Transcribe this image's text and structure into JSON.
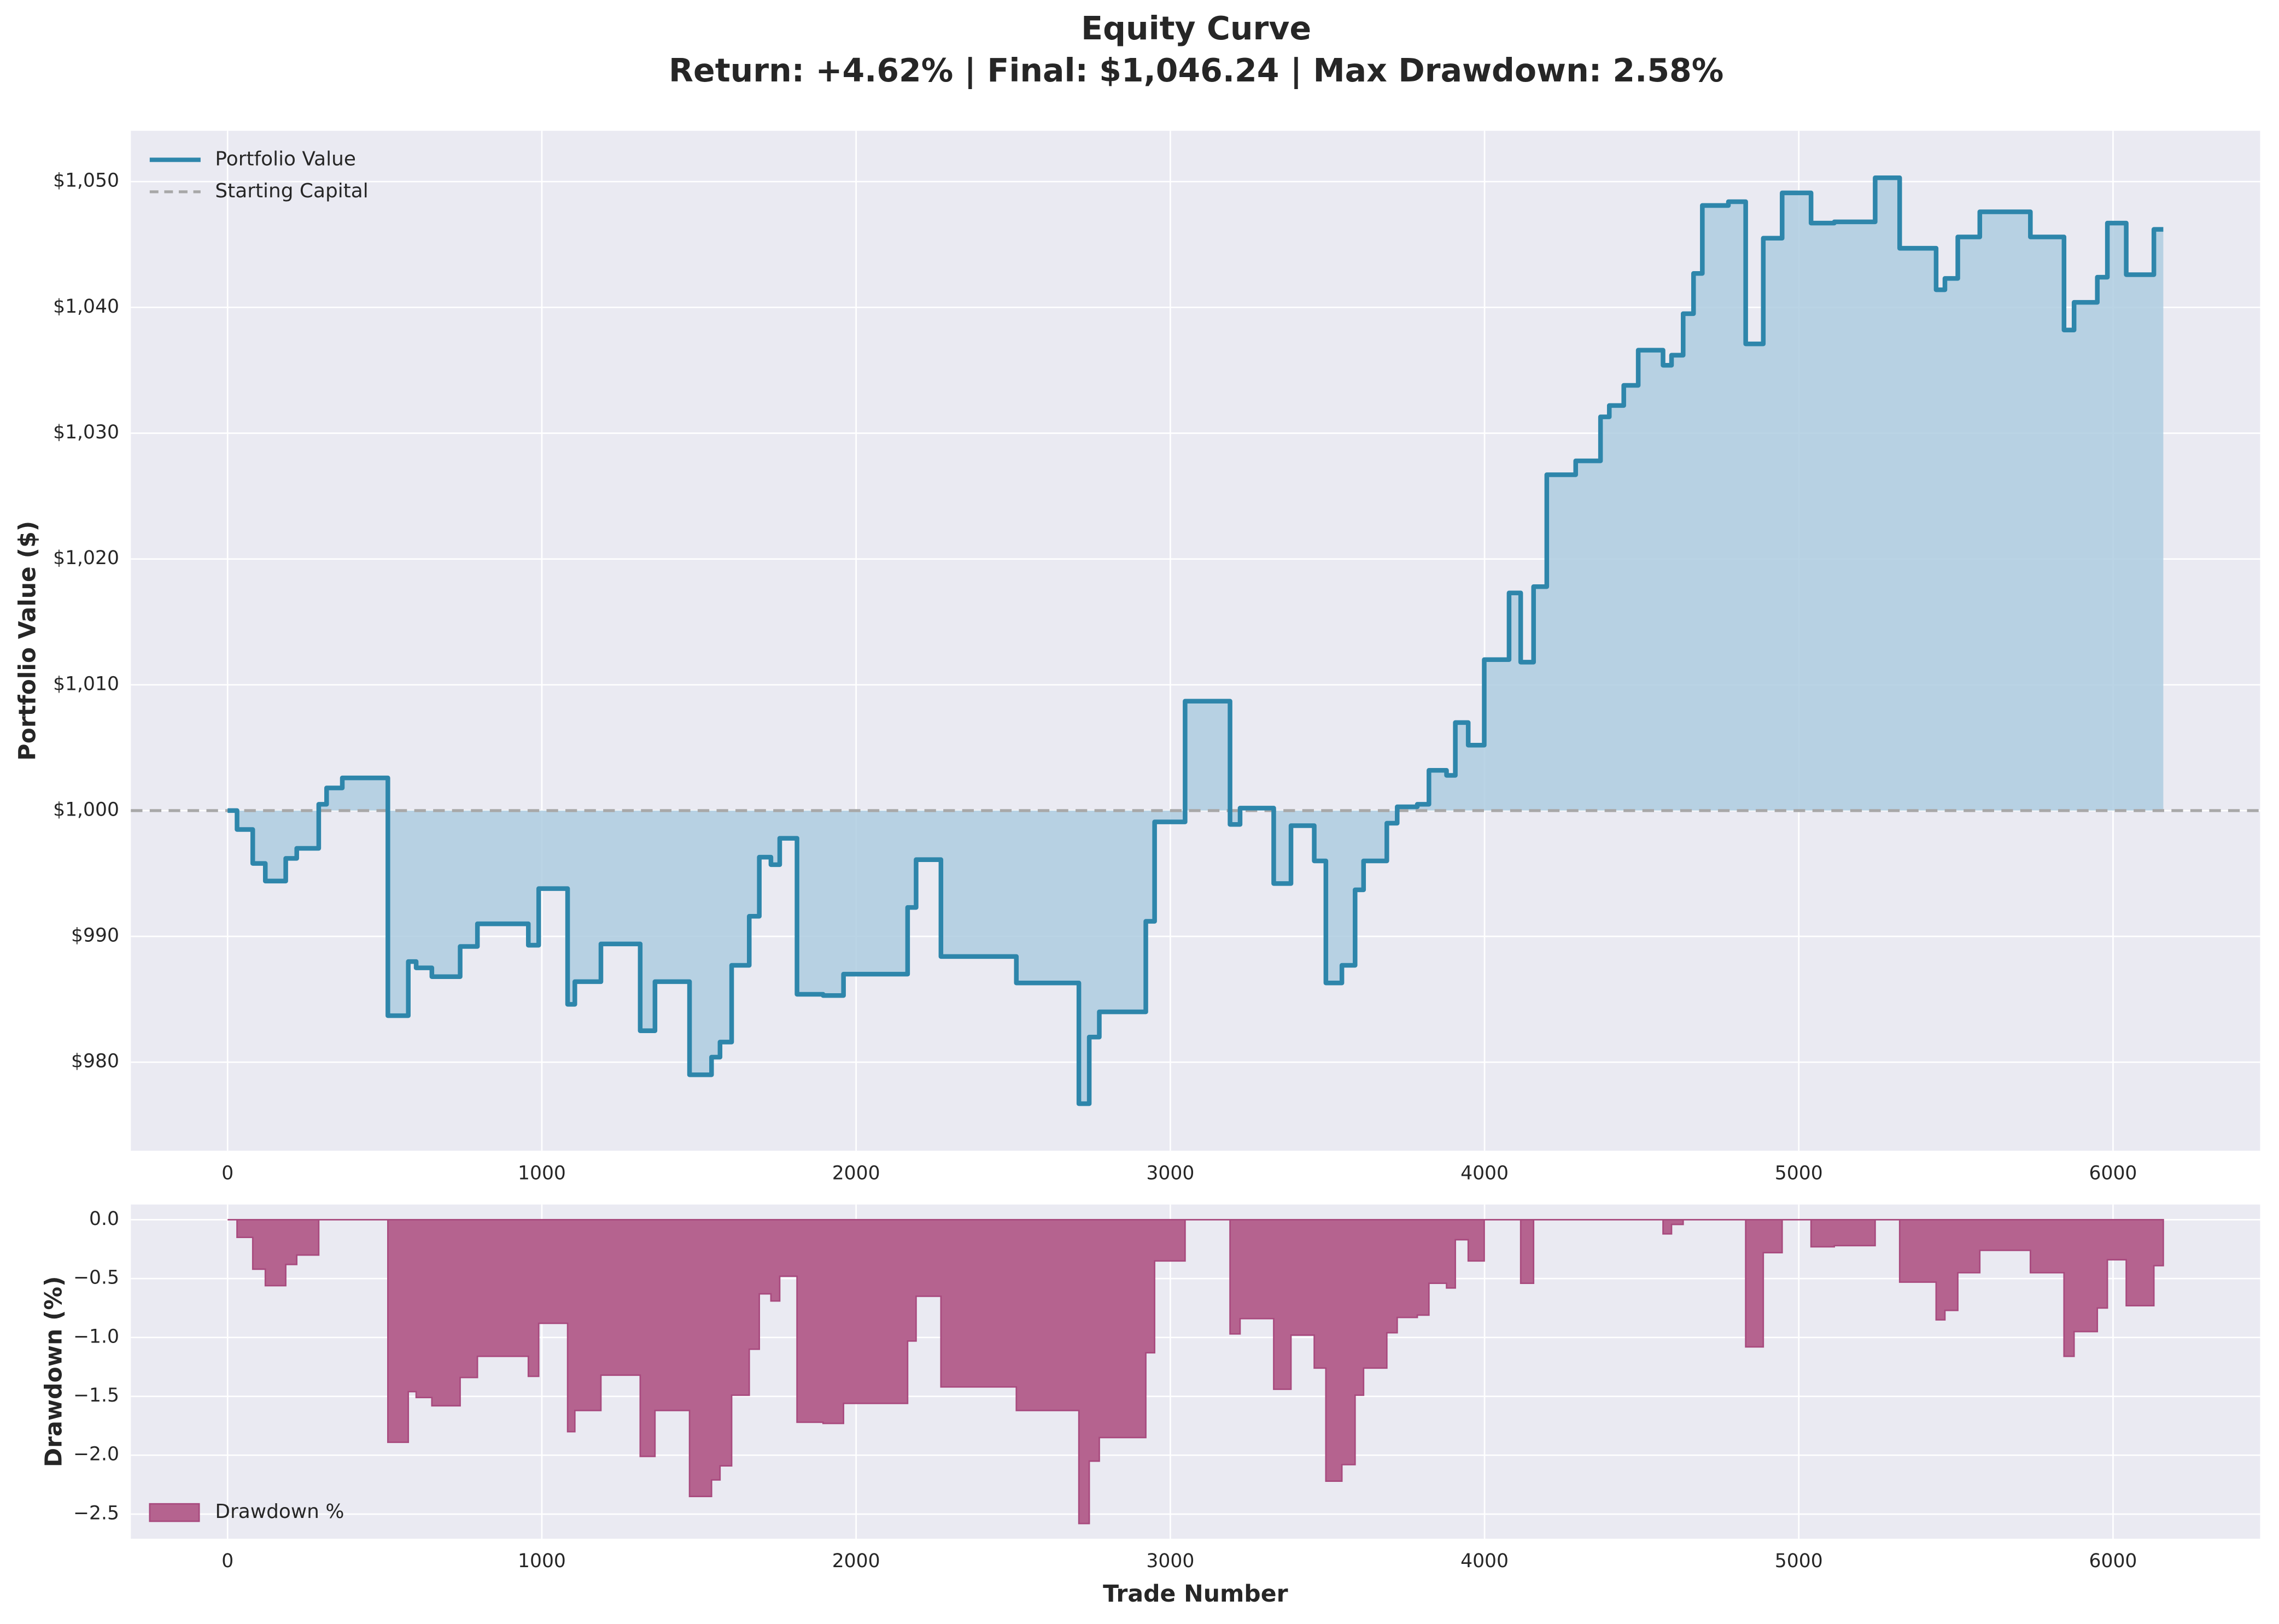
{
  "chart_data": [
    {
      "type": "line",
      "step": "post",
      "title": "Equity Curve",
      "subtitle": "Return: +4.62% | Final: $1,046.24 | Max Drawdown: 2.58%",
      "ylabel": "Portfolio Value ($)",
      "legend": "upper left",
      "grid": true,
      "background": "#eaeaf2",
      "fill_color": "#aecde0",
      "xlim": [
        -308,
        6468
      ],
      "xticks": [
        0,
        1000,
        2000,
        3000,
        4000,
        5000,
        6000
      ],
      "ylim": [
        972.96,
        1054.04
      ],
      "yticks": [
        {
          "value": 980,
          "label": "$980"
        },
        {
          "value": 990,
          "label": "$990"
        },
        {
          "value": 1000,
          "label": "$1,000"
        },
        {
          "value": 1010,
          "label": "$1,010"
        },
        {
          "value": 1020,
          "label": "$1,020"
        },
        {
          "value": 1030,
          "label": "$1,030"
        },
        {
          "value": 1040,
          "label": "$1,040"
        },
        {
          "value": 1050,
          "label": "$1,050"
        }
      ],
      "reference_line": {
        "name": "Starting Capital",
        "value": 1000,
        "color": "#a8a8a8"
      },
      "x": [
        0,
        30,
        80,
        120,
        185,
        220,
        290,
        315,
        365,
        510,
        575,
        600,
        650,
        740,
        795,
        957,
        990,
        1082,
        1105,
        1188,
        1313,
        1360,
        1470,
        1540,
        1567,
        1604,
        1660,
        1692,
        1729,
        1757,
        1812,
        1895,
        1960,
        2164,
        2191,
        2270,
        2510,
        2709,
        2742,
        2774,
        2922,
        2950,
        3047,
        3190,
        3222,
        3329,
        3384,
        3458,
        3495,
        3546,
        3588,
        3615,
        3689,
        3722,
        3786,
        3823,
        3879,
        3907,
        3948,
        3999,
        4078,
        4115,
        4156,
        4198,
        4290,
        4369,
        4397,
        4443,
        4489,
        4568,
        4595,
        4632,
        4665,
        4693,
        4776,
        4831,
        4887,
        4947,
        5039,
        5113,
        5243,
        5321,
        5437,
        5465,
        5506,
        5576,
        5737,
        5844,
        5876,
        5950,
        5982,
        6042,
        6130,
        6160
      ],
      "series": [
        {
          "name": "Portfolio Value",
          "color": "#2e86ab",
          "values": [
            1000,
            998.5,
            995.8,
            994.4,
            996.2,
            997,
            1000.5,
            1001.8,
            1002.6,
            983.7,
            988,
            987.5,
            986.8,
            989.2,
            991,
            989.3,
            993.8,
            984.6,
            986.4,
            989.4,
            982.5,
            986.4,
            979,
            980.4,
            981.6,
            987.7,
            991.6,
            996.3,
            995.7,
            997.8,
            985.4,
            985.3,
            987,
            992.3,
            996.1,
            988.4,
            986.3,
            976.7,
            982,
            984,
            991.2,
            999.1,
            1008.7,
            998.9,
            1000.2,
            994.2,
            998.8,
            996,
            986.3,
            987.7,
            993.7,
            996,
            999,
            1000.3,
            1000.5,
            1003.2,
            1002.8,
            1007,
            1005.2,
            1012,
            1017.3,
            1011.8,
            1017.8,
            1026.7,
            1027.8,
            1031.3,
            1032.2,
            1033.8,
            1036.6,
            1035.4,
            1036.2,
            1039.5,
            1042.7,
            1048.1,
            1048.4,
            1037.1,
            1045.5,
            1049.1,
            1046.7,
            1046.8,
            1050.3,
            1044.7,
            1041.4,
            1042.3,
            1045.6,
            1047.6,
            1045.6,
            1038.2,
            1040.4,
            1042.4,
            1046.7,
            1042.6,
            1046.2,
            1046.2
          ]
        }
      ]
    },
    {
      "type": "area",
      "step": "post",
      "ylabel": "Drawdown (%)",
      "xlabel": "Trade Number",
      "legend": "lower left",
      "grid": true,
      "background": "#eaeaf2",
      "xlim": [
        -308,
        6468
      ],
      "xticks": [
        0,
        1000,
        2000,
        3000,
        4000,
        5000,
        6000
      ],
      "ylim": [
        -2.709,
        0.129
      ],
      "yticks": [
        {
          "value": -2.5,
          "label": "−2.5"
        },
        {
          "value": -2,
          "label": "−2.0"
        },
        {
          "value": -1.5,
          "label": "−1.5"
        },
        {
          "value": -1,
          "label": "−1.0"
        },
        {
          "value": -0.5,
          "label": "−0.5"
        },
        {
          "value": 0,
          "label": "0.0"
        }
      ],
      "x": [
        0,
        30,
        80,
        120,
        185,
        220,
        290,
        510,
        575,
        600,
        650,
        740,
        795,
        957,
        990,
        1082,
        1105,
        1188,
        1313,
        1360,
        1470,
        1540,
        1567,
        1604,
        1660,
        1692,
        1729,
        1757,
        1812,
        1895,
        1960,
        2164,
        2191,
        2270,
        2510,
        2709,
        2742,
        2774,
        2922,
        2950,
        3047,
        3190,
        3222,
        3329,
        3384,
        3458,
        3495,
        3546,
        3588,
        3615,
        3689,
        3722,
        3786,
        3823,
        3879,
        3907,
        3948,
        3999,
        4115,
        4156,
        4568,
        4595,
        4632,
        4831,
        4887,
        4947,
        5039,
        5113,
        5243,
        5321,
        5437,
        5465,
        5506,
        5576,
        5737,
        5844,
        5876,
        5950,
        5982,
        6042,
        6130,
        6160
      ],
      "series": [
        {
          "name": "Drawdown %",
          "color": "#b5638f",
          "values": [
            0,
            -0.15,
            -0.42,
            -0.56,
            -0.38,
            -0.3,
            0,
            -1.89,
            -1.46,
            -1.51,
            -1.58,
            -1.34,
            -1.16,
            -1.33,
            -0.88,
            -1.8,
            -1.62,
            -1.32,
            -2.01,
            -1.62,
            -2.35,
            -2.21,
            -2.09,
            -1.49,
            -1.1,
            -0.63,
            -0.69,
            -0.48,
            -1.72,
            -1.73,
            -1.56,
            -1.03,
            -0.65,
            -1.42,
            -1.62,
            -2.58,
            -2.05,
            -1.85,
            -1.13,
            -0.35,
            0,
            -0.97,
            -0.84,
            -1.44,
            -0.98,
            -1.26,
            -2.22,
            -2.08,
            -1.49,
            -1.26,
            -0.96,
            -0.83,
            -0.81,
            -0.54,
            -0.58,
            -0.17,
            -0.35,
            0,
            -0.54,
            0,
            -0.12,
            -0.04,
            0,
            -1.08,
            -0.28,
            0,
            -0.23,
            -0.22,
            0,
            -0.53,
            -0.85,
            -0.77,
            -0.45,
            -0.26,
            -0.45,
            -1.16,
            -0.95,
            -0.75,
            -0.34,
            -0.73,
            -0.39,
            -0.39
          ]
        }
      ]
    }
  ]
}
